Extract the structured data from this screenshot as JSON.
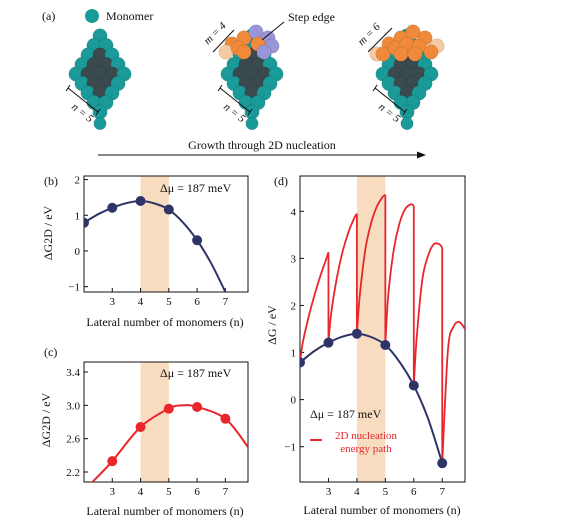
{
  "panel_a": {
    "tag": "(a)",
    "legend_label": "Monomer",
    "colors": {
      "monomer": "#1a9a98",
      "monomer_dark": "#0e6f6d",
      "step": "#f08a3a",
      "step_light": "#f6caa0",
      "step_purple": "#9a95d8",
      "core": "#3a4a4e"
    },
    "clusters": [
      {
        "n_label": "n = 5",
        "m_label": "",
        "step_label": ""
      },
      {
        "n_label": "n = 5",
        "m_label": "m = 4",
        "step_label": "Step edge"
      },
      {
        "n_label": "n = 5",
        "m_label": "m = 6",
        "step_label": ""
      }
    ],
    "growth_label": "Growth through 2D nucleation"
  },
  "chart_data": [
    {
      "panel": "(b)",
      "type": "line",
      "xlabel": "Lateral number of monomers (n)",
      "ylabel": "ΔG2D / eV",
      "annotation": "Δμ = 187 meV",
      "xlim": [
        2,
        7.8
      ],
      "ylim": [
        -1.15,
        2.1
      ],
      "xticks": [
        3,
        4,
        5,
        6,
        7
      ],
      "yticks": [
        -1,
        0,
        1,
        2
      ],
      "shaded_x": [
        4,
        5
      ],
      "colors": {
        "line": "#2e3566",
        "points": "#2e3566",
        "shade": "#f7dcc0"
      },
      "points": {
        "x": [
          2,
          3,
          4,
          5,
          6
        ],
        "y": [
          0.79,
          1.21,
          1.4,
          1.16,
          0.3
        ]
      },
      "curve": {
        "x": [
          2,
          2.5,
          3,
          3.5,
          4,
          4.5,
          5,
          5.5,
          6,
          6.5,
          7
        ],
        "y": [
          0.79,
          1.03,
          1.21,
          1.34,
          1.4,
          1.33,
          1.16,
          0.8,
          0.3,
          -0.35,
          -1.15
        ]
      }
    },
    {
      "panel": "(c)",
      "type": "line",
      "xlabel": "Lateral number of monomers (n)",
      "ylabel": "ΔG2D / eV",
      "annotation": "Δμ = 187 meV",
      "xlim": [
        2,
        7.8
      ],
      "ylim": [
        2.08,
        3.52
      ],
      "xticks": [
        3,
        4,
        5,
        6,
        7
      ],
      "yticks": [
        2.2,
        2.6,
        3.0,
        3.4
      ],
      "shaded_x": [
        4,
        5
      ],
      "colors": {
        "line": "#e8262b",
        "points": "#e8262b",
        "shade": "#f7dcc0"
      },
      "points": {
        "x": [
          3,
          4,
          5,
          6,
          7
        ],
        "y": [
          2.33,
          2.74,
          2.96,
          2.98,
          2.84
        ]
      },
      "curve": {
        "x": [
          2.3,
          3,
          4,
          5,
          5.5,
          6,
          7,
          7.8
        ],
        "y": [
          2.08,
          2.33,
          2.74,
          2.96,
          3.0,
          2.98,
          2.84,
          2.5
        ]
      }
    },
    {
      "panel": "(d)",
      "type": "line",
      "xlabel": "Lateral number of monomers (n)",
      "ylabel": "ΔG / eV",
      "annotation": "Δμ = 187 meV",
      "legend": "2D nucleation energy path",
      "xlim": [
        2,
        7.8
      ],
      "ylim": [
        -1.75,
        4.75
      ],
      "xticks": [
        3,
        4,
        5,
        6,
        7
      ],
      "yticks": [
        -1,
        0,
        1,
        2,
        3,
        4
      ],
      "shaded_x": [
        4,
        5
      ],
      "colors": {
        "blue": "#2e3566",
        "red": "#e8262b",
        "shade": "#f7dcc0"
      },
      "points": {
        "x": [
          2,
          3,
          4,
          5,
          6,
          7
        ],
        "y": [
          0.79,
          1.21,
          1.4,
          1.16,
          0.3,
          -1.35
        ]
      },
      "curve": {
        "x": [
          2,
          2.5,
          3,
          3.5,
          4,
          4.5,
          5,
          5.5,
          6,
          6.5,
          7
        ],
        "y": [
          0.79,
          1.03,
          1.21,
          1.34,
          1.4,
          1.33,
          1.16,
          0.8,
          0.3,
          -0.4,
          -1.35
        ]
      },
      "red_path": {
        "x": [
          2,
          2.1,
          2.3,
          2.5,
          2.7,
          2.9,
          3.0,
          3.0,
          3.1,
          3.3,
          3.5,
          3.7,
          3.9,
          4.0,
          4.0,
          4.1,
          4.3,
          4.5,
          4.7,
          4.9,
          5.0,
          5.0,
          5.1,
          5.3,
          5.5,
          5.7,
          5.9,
          6.0,
          6.0,
          6.1,
          6.3,
          6.5,
          6.7,
          6.9,
          7.0,
          7.0,
          7.2,
          7.4,
          7.6,
          7.8
        ],
        "y": [
          0.79,
          1.22,
          1.75,
          2.2,
          2.6,
          2.95,
          3.13,
          1.21,
          1.85,
          2.6,
          3.15,
          3.55,
          3.85,
          3.95,
          1.4,
          2.2,
          3.2,
          3.75,
          4.1,
          4.3,
          4.35,
          1.16,
          2.2,
          3.2,
          3.75,
          4.05,
          4.15,
          4.12,
          0.3,
          1.3,
          2.55,
          3.05,
          3.3,
          3.3,
          3.22,
          -1.35,
          1.05,
          1.55,
          1.65,
          1.5
        ]
      }
    }
  ]
}
